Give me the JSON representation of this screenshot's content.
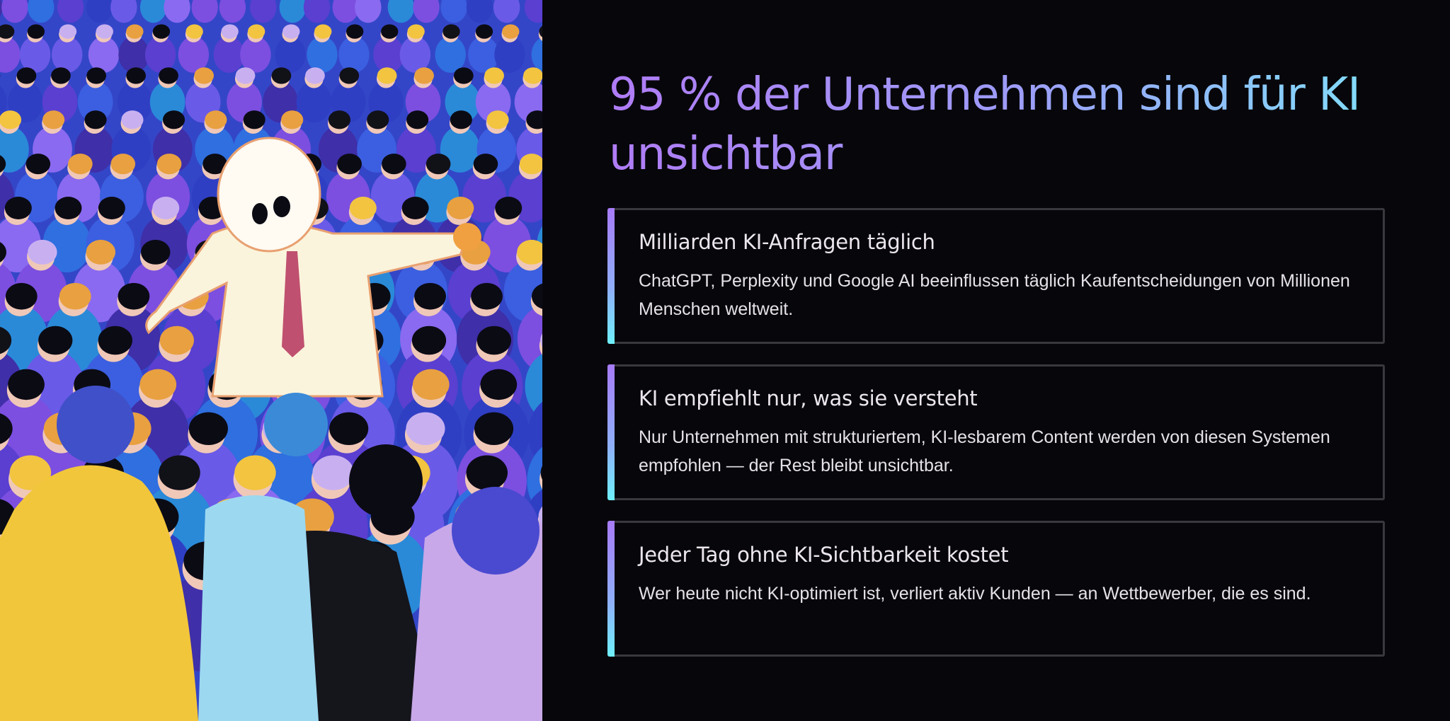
{
  "hero": {
    "title": "95 % der Unternehmen sind für KI unsichtbar",
    "gradient": [
      "#b07cf6",
      "#7ee6fb"
    ]
  },
  "illustration": {
    "subject": "ghost-in-crowd-illustration"
  },
  "cards": [
    {
      "title": "Milliarden KI-Anfragen täglich",
      "text": "ChatGPT, Perplexity und Google AI beeinflussen täglich Kaufentscheidungen von Millionen Menschen weltweit."
    },
    {
      "title": "KI empfiehlt nur, was sie versteht",
      "text": "Nur Unternehmen mit strukturiertem, KI-lesbarem Content werden von diesen Systemen empfohlen — der Rest bleibt unsichtbar."
    },
    {
      "title": "Jeder Tag ohne KI-Sichtbarkeit kostet",
      "text": "Wer heute nicht KI-optimiert ist, verliert aktiv Kunden — an Wettbewerber, die es sind."
    }
  ],
  "colors": {
    "background": "#07070b",
    "card_border": "#38383e",
    "accent_top": "#a77bf8",
    "accent_bottom": "#6ff0fc",
    "text": "#e6e1e8"
  }
}
